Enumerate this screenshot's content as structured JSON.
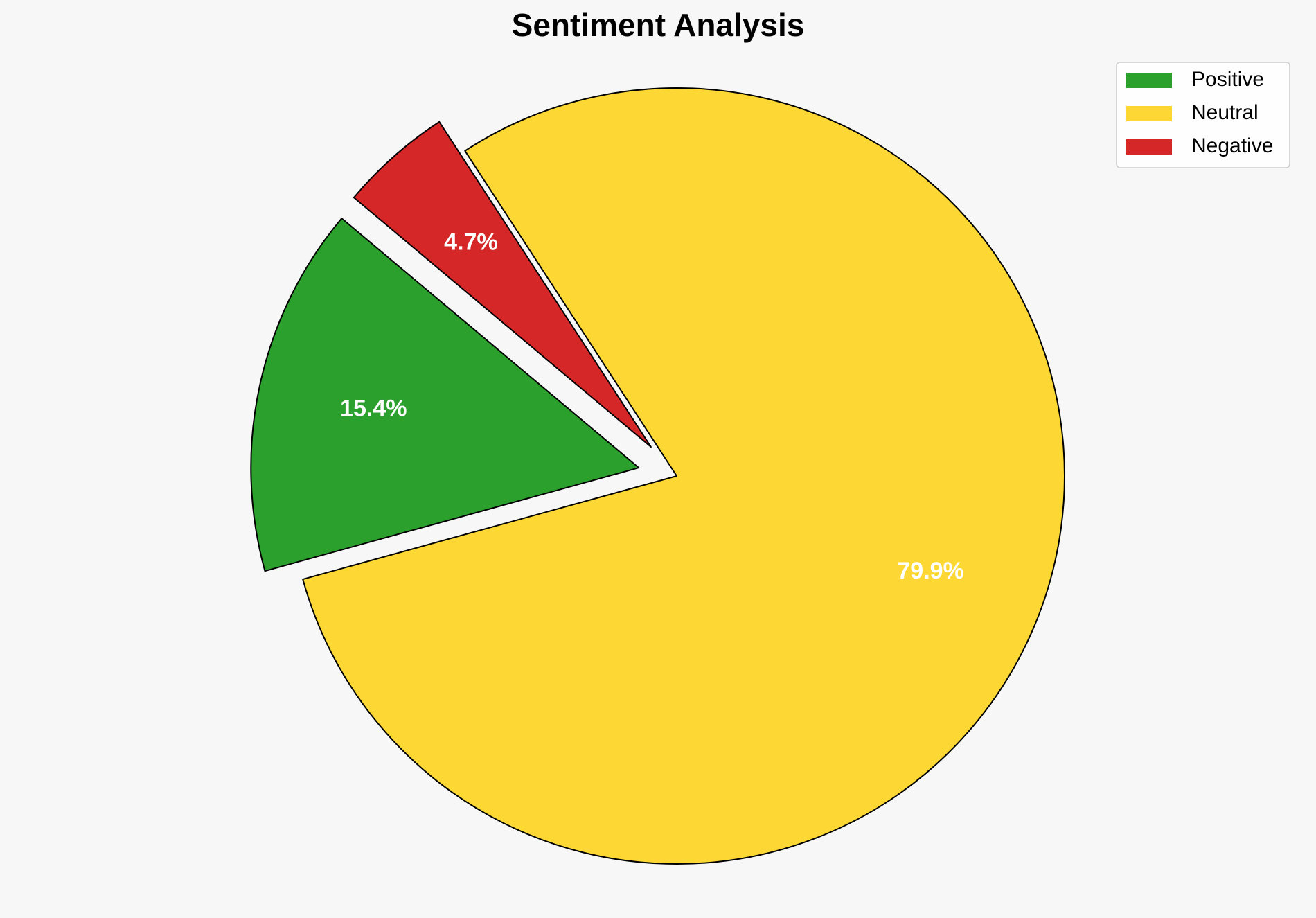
{
  "chart_data": {
    "type": "pie",
    "title": "Sentiment Analysis",
    "categories": [
      "Positive",
      "Neutral",
      "Negative"
    ],
    "values": [
      15.4,
      79.9,
      4.7
    ],
    "value_labels": [
      "15.4%",
      "79.9%",
      "4.7%"
    ],
    "colors": [
      "#2ca02c",
      "#fdd835",
      "#d62728"
    ],
    "legend": "upper right"
  }
}
